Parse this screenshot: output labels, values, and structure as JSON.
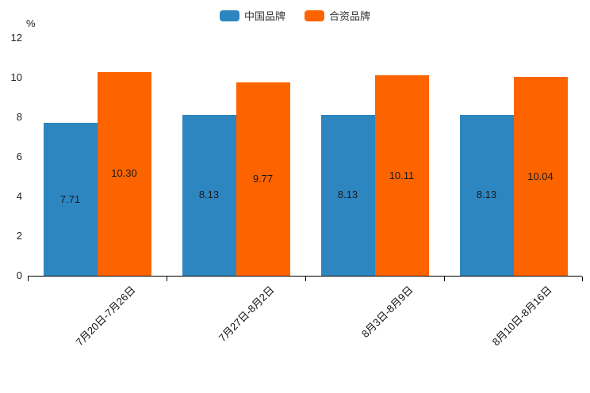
{
  "chart_data": {
    "type": "bar",
    "title": "",
    "categories": [
      "7月20日-7月26日",
      "7月27日-8月2日",
      "8月3日-8月9日",
      "8月10日-8月16日"
    ],
    "series": [
      {
        "name": "中国品牌",
        "color": "#2e86c1",
        "values": [
          7.71,
          8.13,
          8.13,
          8.13
        ]
      },
      {
        "name": "合资品牌",
        "color": "#fd6400",
        "values": [
          10.3,
          9.77,
          10.11,
          10.04
        ]
      }
    ],
    "xlabel": "",
    "ylabel": "%",
    "ylim": [
      0,
      12
    ],
    "yticks": [
      0,
      2,
      4,
      6,
      8,
      10,
      12
    ],
    "grid": false,
    "legend_position": "top-center",
    "value_label_format": "2-decimals-inside-bar"
  }
}
